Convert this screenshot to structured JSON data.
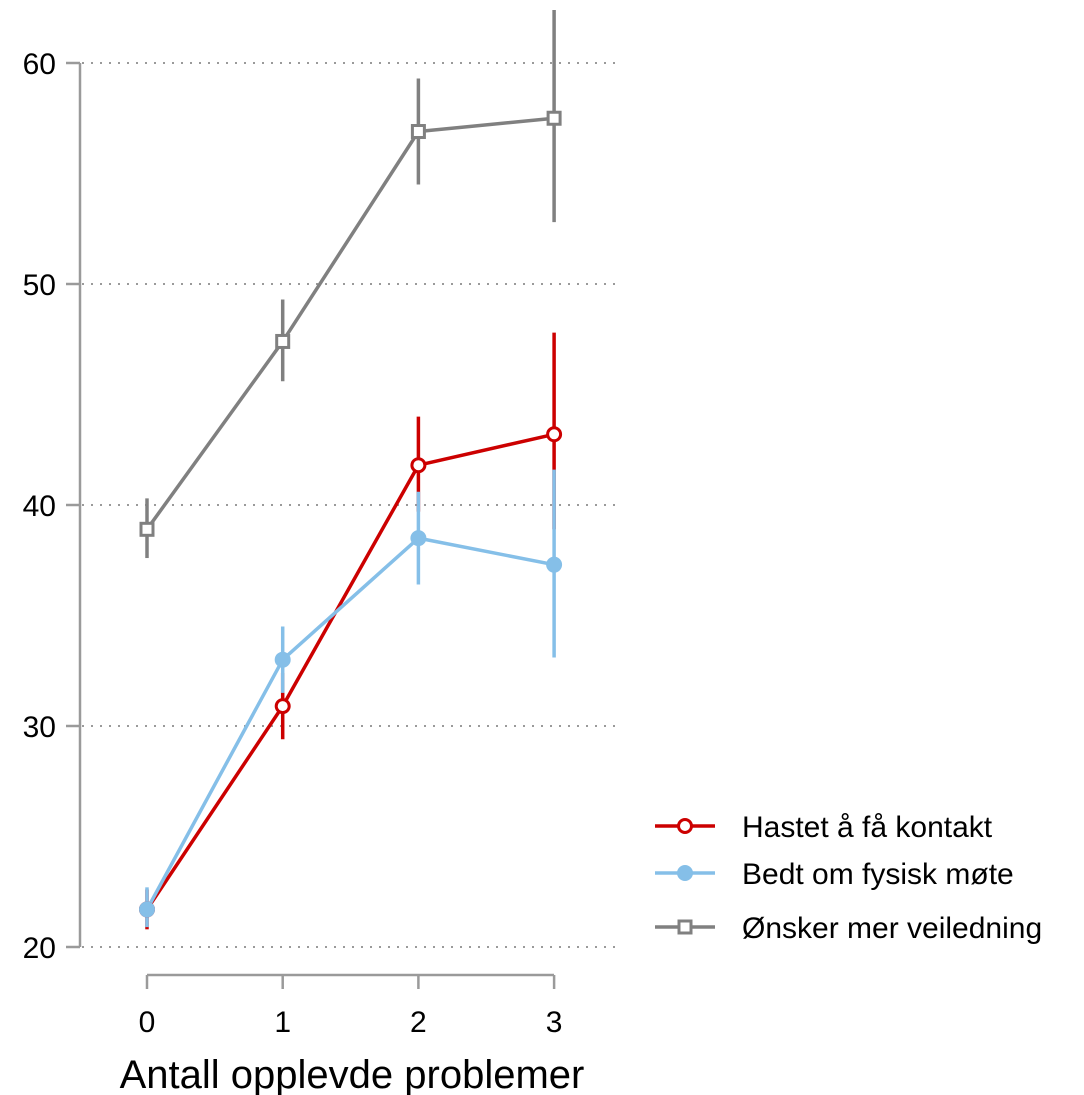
{
  "chart_data": {
    "type": "line",
    "title": "",
    "xlabel": "Antall opplevde problemer",
    "ylabel": "",
    "x": [
      0,
      1,
      2,
      3
    ],
    "xticks": [
      "0",
      "1",
      "2",
      "3"
    ],
    "yticks": [
      "20",
      "30",
      "40",
      "50",
      "60"
    ],
    "ylim": [
      20,
      60
    ],
    "grid": "horizontal dotted",
    "legend_position": "right",
    "series": [
      {
        "name": "Hastet å få kontakt",
        "color": "#cc0000",
        "marker": "hollow-circle",
        "values": [
          21.7,
          30.9,
          41.8,
          43.2
        ],
        "ci_low": [
          20.8,
          29.4,
          39.7,
          38.9
        ],
        "ci_high": [
          22.6,
          32.4,
          44.0,
          47.8
        ]
      },
      {
        "name": "Bedt om fysisk møte",
        "color": "#85bfe8",
        "marker": "filled-circle",
        "values": [
          21.7,
          33.0,
          38.5,
          37.3
        ],
        "ci_low": [
          20.9,
          31.5,
          36.4,
          33.1
        ],
        "ci_high": [
          22.7,
          34.5,
          40.6,
          41.6
        ]
      },
      {
        "name": "Ønsker mer veiledning",
        "color": "#808080",
        "marker": "hollow-square",
        "values": [
          38.9,
          47.4,
          56.9,
          57.5
        ],
        "ci_low": [
          37.6,
          45.6,
          54.5,
          52.8
        ],
        "ci_high": [
          40.3,
          49.3,
          59.3,
          62.4
        ]
      }
    ]
  }
}
